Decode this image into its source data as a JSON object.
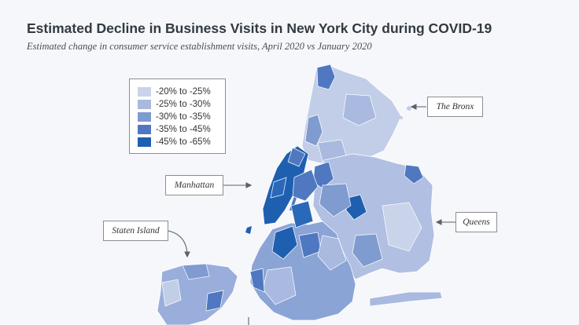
{
  "title": "Estimated Decline in Business Visits in New York City during COVID-19",
  "subtitle": "Estimated change in consumer service establishment visits, April 2020 vs January 2020",
  "legend": {
    "items": [
      {
        "label": "-20% to -25%",
        "color": "#c9d3ea"
      },
      {
        "label": "-25% to -30%",
        "color": "#a9b9df"
      },
      {
        "label": "-30% to -35%",
        "color": "#7f9bd0"
      },
      {
        "label": "-35% to -45%",
        "color": "#4f78c0"
      },
      {
        "label": "-45% to -65%",
        "color": "#1f5fb0"
      }
    ]
  },
  "callouts": {
    "bronx": "The Bronx",
    "manhattan": "Manhattan",
    "staten_island": "Staten Island",
    "queens": "Queens"
  }
}
